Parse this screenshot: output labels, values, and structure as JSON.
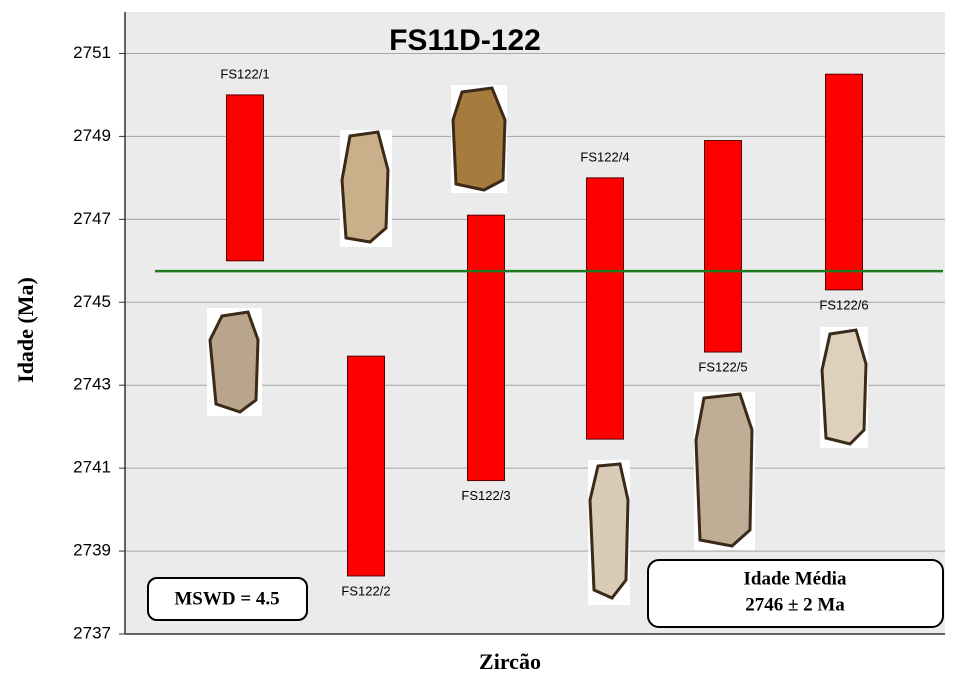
{
  "chart_data": {
    "type": "floating-bar",
    "title": "FS11D-122",
    "y_label": "Idade (Ma)",
    "x_label": "Zircão",
    "categories": [
      "FS122/1",
      "FS122/2",
      "FS122/3",
      "FS122/4",
      "FS122/5",
      "FS122/6"
    ],
    "low": [
      2746,
      2738.4,
      2740.7,
      2741.7,
      2743.8,
      2745.3
    ],
    "high": [
      2750,
      2743.7,
      2747.1,
      2748,
      2748.9,
      2750.5
    ],
    "color": "#ff0000",
    "reference_line": {
      "value": 2745.75,
      "color": "#1f7a1f"
    },
    "ylim": [
      2737,
      2752
    ],
    "yticks": [
      2737,
      2739,
      2741,
      2743,
      2745,
      2747,
      2749,
      2751
    ],
    "grid": true,
    "annotations": [
      "MSWD = 4.5",
      "Idade Média",
      "2746 ± 2 Ma"
    ]
  }
}
